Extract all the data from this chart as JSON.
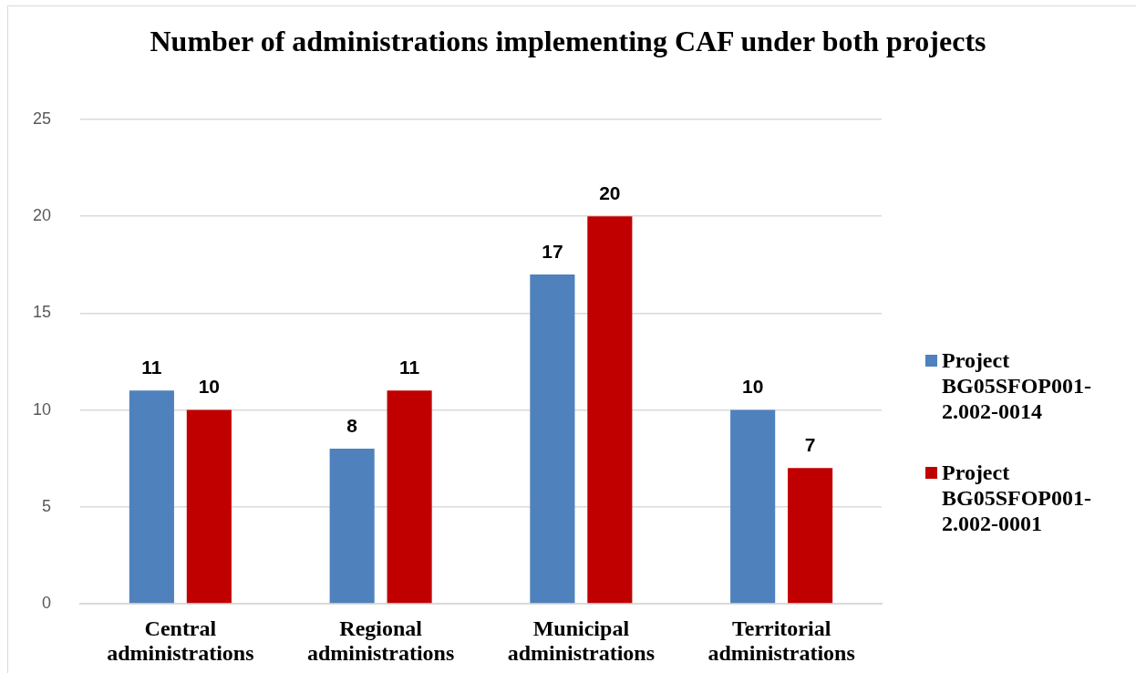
{
  "chart_data": {
    "type": "bar",
    "title": "Number of administrations implementing CAF under both projects",
    "categories": [
      "Central administrations",
      "Regional administrations",
      "Municipal administrations",
      "Territorial administrations"
    ],
    "series": [
      {
        "name": "Project BG05SFOP001-2.002-0014",
        "color": "#4f81bd",
        "values": [
          11,
          8,
          17,
          10
        ]
      },
      {
        "name": "Project BG05SFOP001-2.002-0001",
        "color": "#c00000",
        "values": [
          10,
          11,
          20,
          7
        ]
      }
    ],
    "ylim": [
      0,
      25
    ],
    "yticks": [
      0,
      5,
      10,
      15,
      20,
      25
    ],
    "grid": "y",
    "legend": "right",
    "data_labels": true
  }
}
